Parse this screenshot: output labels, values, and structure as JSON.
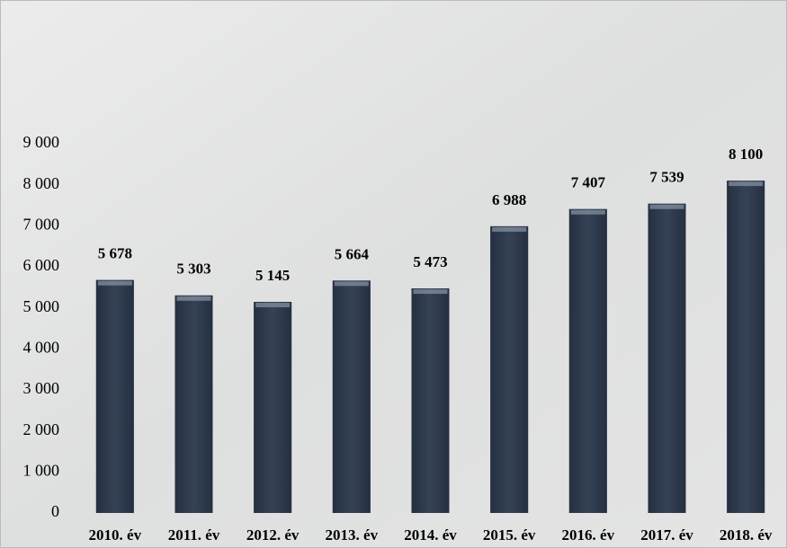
{
  "chart_data": {
    "type": "bar",
    "categories": [
      "2010. év",
      "2011. év",
      "2012. év",
      "2013. év",
      "2014. év",
      "2015. év",
      "2016. év",
      "2017. év",
      "2018. év"
    ],
    "values": [
      5678,
      5303,
      5145,
      5664,
      5473,
      6988,
      7407,
      7539,
      8100
    ],
    "value_labels": [
      "5 678",
      "5 303",
      "5 145",
      "5 664",
      "5 473",
      "6 988",
      "7 407",
      "7 539",
      "8 100"
    ],
    "color": "#2e3a4d",
    "ylim": [
      0,
      9000
    ],
    "yticks": [
      0,
      {
        "value": 1000,
        "label": "1 000"
      },
      {
        "value": 2000,
        "label": "2 000"
      },
      {
        "value": 3000,
        "label": "3 000"
      },
      {
        "value": 4000,
        "label": "4 000"
      },
      {
        "value": 5000,
        "label": "5 000"
      },
      {
        "value": 6000,
        "label": "6 000"
      },
      {
        "value": 7000,
        "label": "7 000"
      },
      {
        "value": 8000,
        "label": "8 000"
      },
      {
        "value": 9000,
        "label": "9 000"
      }
    ],
    "grid": false
  }
}
